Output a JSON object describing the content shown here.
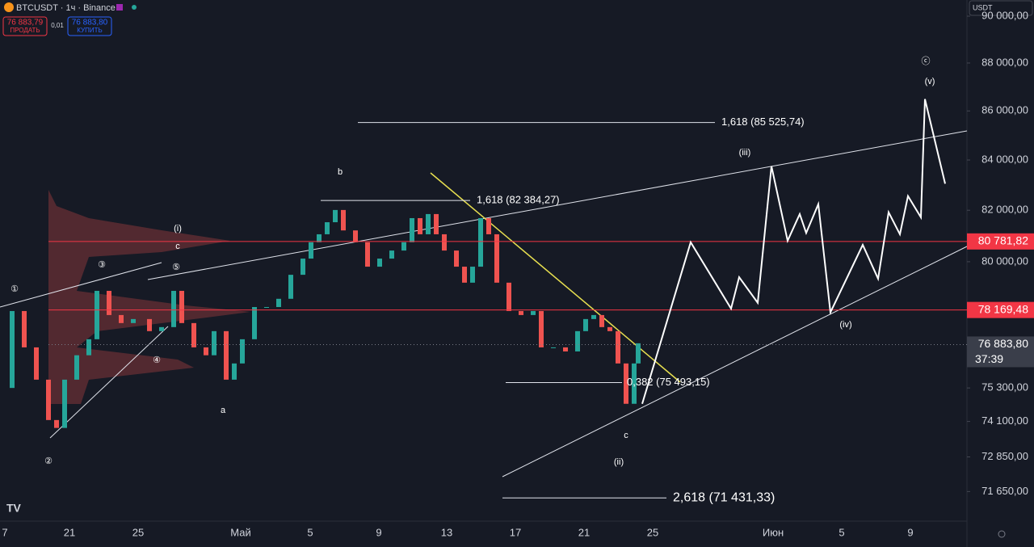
{
  "header": {
    "symbol": "BTCUSDT · 1ч · Binance",
    "sell_price": "76 883,79",
    "sell_label": "ПРОДАТЬ",
    "spread": "0,01",
    "buy_price": "76 883,80",
    "buy_label": "КУПИТЬ",
    "currency": "USDT"
  },
  "chart_data": {
    "type": "candlestick",
    "log_scale": true,
    "ylim": [
      70640,
      90700
    ],
    "yticks": [
      {
        "value": 90000,
        "label": "90 000,00"
      },
      {
        "value": 88000,
        "label": "88 000,00"
      },
      {
        "value": 86000,
        "label": "86 000,00"
      },
      {
        "value": 84000,
        "label": "84 000,00"
      },
      {
        "value": 82000,
        "label": "82 000,00"
      },
      {
        "value": 80000,
        "label": "80 000,00"
      },
      {
        "value": 75300,
        "label": "75 300,00"
      },
      {
        "value": 74100,
        "label": "74 100,00"
      },
      {
        "value": 72850,
        "label": "72 850,00"
      },
      {
        "value": 71650,
        "label": "71 650,00"
      }
    ],
    "x_labels": [
      "7",
      "21",
      "25",
      "Май",
      "5",
      "9",
      "13",
      "17",
      "21",
      "25",
      "Июн",
      "5",
      "9"
    ],
    "up_color": "#26a69a",
    "down_color": "#ef5350",
    "closes": [
      75300,
      78130,
      76780,
      75600,
      74150,
      73870,
      75600,
      76490,
      77080,
      78890,
      77980,
      77680,
      77830,
      77380,
      77530,
      78890,
      77680,
      76780,
      76490,
      77380,
      75600,
      76190,
      77080,
      78280,
      78280,
      78590,
      79500,
      80120,
      80750,
      81060,
      81530,
      82010,
      81210,
      80750,
      79810,
      80120,
      80430,
      80750,
      81690,
      81060,
      81850,
      81060,
      80430,
      79810,
      79200,
      79810,
      81690,
      81060,
      79200,
      78130,
      77980,
      78130,
      76780,
      76780,
      76630,
      77380,
      77830,
      77980,
      77530,
      77380,
      76190,
      74730,
      76190,
      76930
    ],
    "projection": {
      "color": "#ffffff",
      "values": [
        74730,
        80750,
        78220,
        79410,
        78440,
        83750,
        80810,
        81850,
        81110,
        82240,
        78080,
        80650,
        79350,
        81920,
        81060,
        82560,
        81720,
        86490,
        83050
      ]
    },
    "price_levels": [
      {
        "value": 80781.82,
        "label": "80 781,82",
        "color": "#f23645"
      },
      {
        "value": 78169.48,
        "label": "78 169,48",
        "color": "#f23645"
      },
      {
        "value": 76883.8,
        "label": "76 883,80",
        "color": "#3a3e4a",
        "countdown": "37:39"
      }
    ],
    "fib_levels": [
      {
        "value": 85525.74,
        "label": "1,618 (85 525,74)"
      },
      {
        "value": 82384.27,
        "label": "1,618 (82 384,27)"
      },
      {
        "value": 75493.15,
        "label": "0,382 (75 493,15)"
      },
      {
        "value": 71431.33,
        "label": "2,618 (71 431,33)"
      }
    ],
    "wave_labels": [
      "①",
      "②",
      "③",
      "④",
      "⑤",
      "(i)",
      "c",
      "b",
      "a",
      "c",
      "(ii)",
      "(iii)",
      "(iv)",
      "(v)",
      "ⓒ"
    ]
  }
}
